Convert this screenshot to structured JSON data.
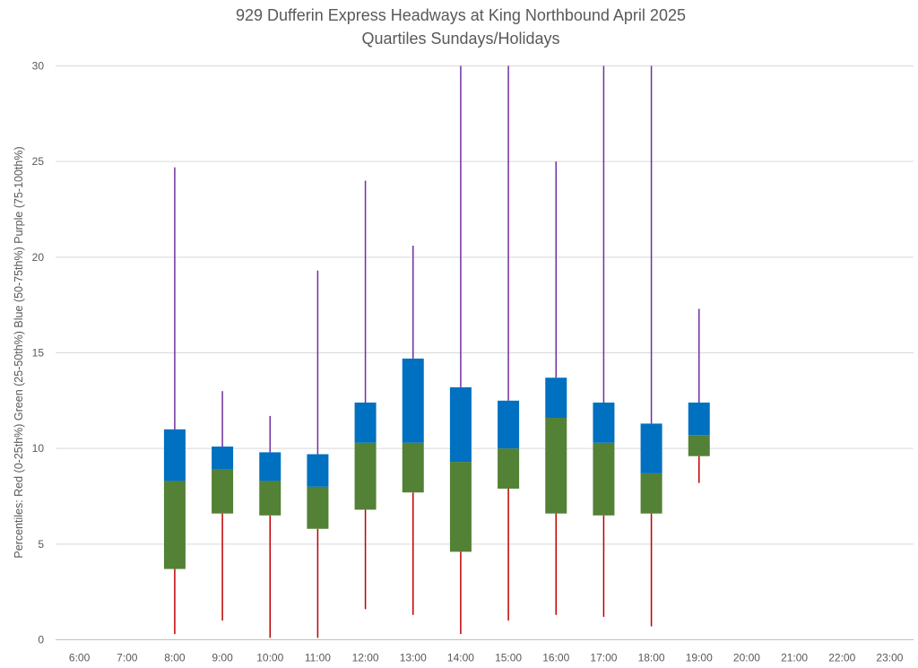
{
  "chart_data": {
    "type": "box",
    "title": "929 Dufferin Express Headways at King Northbound April 2025",
    "subtitle": "Quartiles Sundays/Holidays",
    "ylabel": "Percentiles:  Red (0-25th%)  Green (25-50th%)  Blue (50-75th%)  Purple (75-100th%)",
    "xlabel": "",
    "ylim": [
      0,
      30
    ],
    "yticks": [
      0,
      5,
      10,
      15,
      20,
      25,
      30
    ],
    "grid": true,
    "categories": [
      "6:00",
      "7:00",
      "8:00",
      "9:00",
      "10:00",
      "11:00",
      "12:00",
      "13:00",
      "14:00",
      "15:00",
      "16:00",
      "17:00",
      "18:00",
      "19:00",
      "20:00",
      "21:00",
      "22:00",
      "23:00"
    ],
    "series": [
      {
        "name": "Red (0-25th%)",
        "low": [
          null,
          null,
          0.3,
          1.0,
          0.1,
          0.1,
          1.6,
          1.3,
          0.3,
          1.0,
          1.3,
          1.2,
          0.7,
          8.2,
          null,
          null,
          null,
          null
        ],
        "high": [
          null,
          null,
          3.7,
          6.6,
          6.5,
          5.8,
          6.8,
          7.7,
          4.6,
          7.9,
          6.6,
          6.5,
          6.6,
          9.6,
          null,
          null,
          null,
          null
        ]
      },
      {
        "name": "Green (25-50th%)",
        "low": [
          null,
          null,
          3.7,
          6.6,
          6.5,
          5.8,
          6.8,
          7.7,
          4.6,
          7.9,
          6.6,
          6.5,
          6.6,
          9.6,
          null,
          null,
          null,
          null
        ],
        "high": [
          null,
          null,
          8.3,
          8.9,
          8.3,
          8.0,
          10.3,
          10.3,
          9.3,
          10.0,
          11.6,
          10.3,
          8.7,
          10.7,
          null,
          null,
          null,
          null
        ]
      },
      {
        "name": "Blue (50-75th%)",
        "low": [
          null,
          null,
          8.3,
          8.9,
          8.3,
          8.0,
          10.3,
          10.3,
          9.3,
          10.0,
          11.6,
          10.3,
          8.7,
          10.7,
          null,
          null,
          null,
          null
        ],
        "high": [
          null,
          null,
          11.0,
          10.1,
          9.8,
          9.7,
          12.4,
          14.7,
          13.2,
          12.5,
          13.7,
          12.4,
          11.3,
          12.4,
          null,
          null,
          null,
          null
        ]
      },
      {
        "name": "Purple (75-100th%)",
        "low": [
          null,
          null,
          11.0,
          10.1,
          9.8,
          9.7,
          12.4,
          14.7,
          13.2,
          12.5,
          13.7,
          12.4,
          11.3,
          12.4,
          null,
          null,
          null,
          null
        ],
        "high": [
          null,
          null,
          24.7,
          13.0,
          11.7,
          19.3,
          24.0,
          20.6,
          30.0,
          30.0,
          25.0,
          30.0,
          30.0,
          17.3,
          null,
          null,
          null,
          null
        ]
      }
    ],
    "colors": {
      "red": "#c00000",
      "green": "#538135",
      "blue": "#0070c0",
      "purple": "#7030a0",
      "grid": "#d9d9d9",
      "axis": "#bfbfbf",
      "text": "#595959"
    }
  }
}
